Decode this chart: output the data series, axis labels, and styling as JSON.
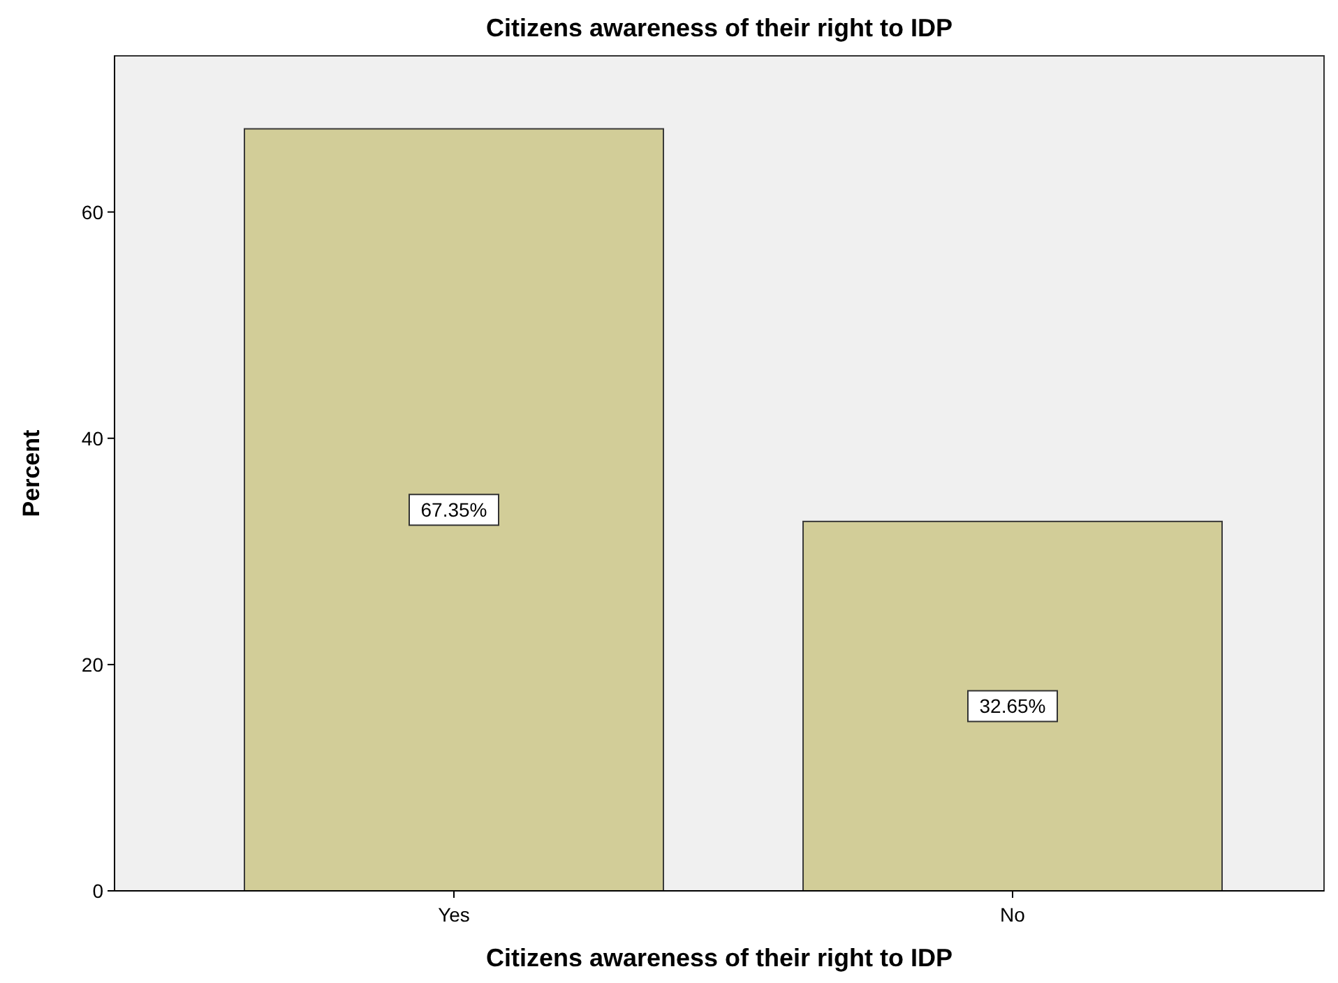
{
  "chart_data": {
    "type": "bar",
    "title": "Citizens awareness of their right to IDP",
    "xlabel": "Citizens awareness of their right to IDP",
    "ylabel": "Percent",
    "categories": [
      "Yes",
      "No"
    ],
    "values": [
      67.35,
      32.65
    ],
    "value_labels": [
      "67.35%",
      "32.65%"
    ],
    "color": "#d2cd98",
    "ylim": [
      0,
      73.8
    ],
    "yticks": [
      0,
      20,
      40,
      60
    ],
    "grid": false
  }
}
